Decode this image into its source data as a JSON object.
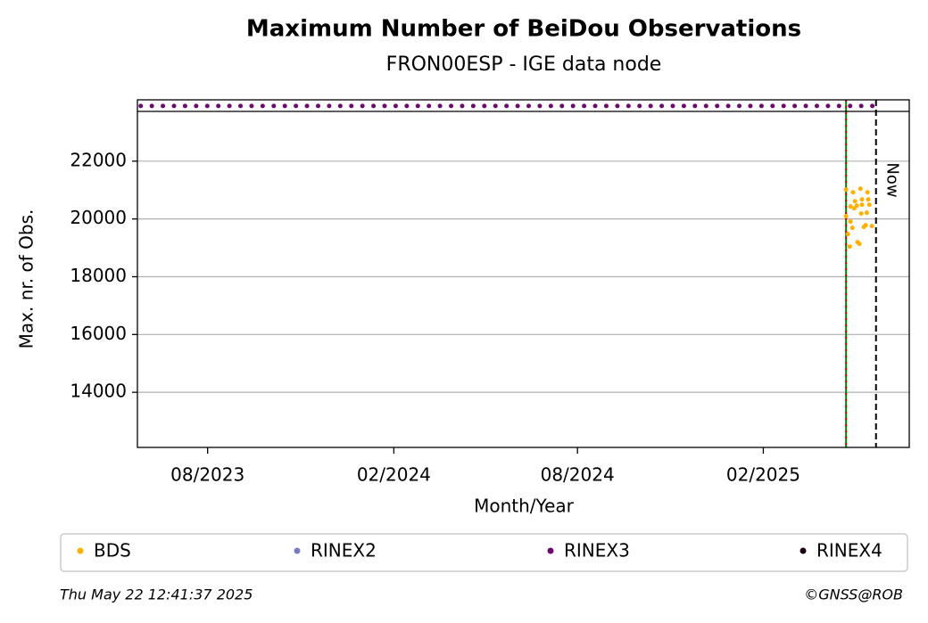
{
  "chart_data": {
    "type": "scatter",
    "title": "Maximum Number of BeiDou Observations",
    "subtitle": "FRON00ESP - IGE data node",
    "x_label": "Month/Year",
    "y_label": "Max. nr. of Obs.",
    "xlim": [
      2023.391,
      2025.48
    ],
    "ylim": [
      12092,
      24123
    ],
    "xticks": [
      {
        "value": 2023.581,
        "label": "08/2023"
      },
      {
        "value": 2024.085,
        "label": "02/2024"
      },
      {
        "value": 2024.582,
        "label": "08/2024"
      },
      {
        "value": 2025.085,
        "label": "02/2025"
      }
    ],
    "yticks": [
      14000,
      16000,
      18000,
      20000,
      22000
    ],
    "grid": true,
    "series": [
      {
        "name": "BDS",
        "color": "#ffb000",
        "x": [
          2025.309,
          2025.309,
          2025.314,
          2025.321,
          2025.319,
          2025.326,
          2025.328,
          2025.331,
          2025.333,
          2025.338,
          2025.34,
          2025.345,
          2025.348,
          2025.35,
          2025.352,
          2025.352,
          2025.362,
          2025.365,
          2025.367,
          2025.369,
          2025.372,
          2025.357,
          2025.379,
          2025.321
        ],
        "values": [
          21015,
          20092,
          19477,
          19908,
          19046,
          19692,
          20923,
          20369,
          20615,
          20462,
          19200,
          19138,
          21046,
          20185,
          20677,
          20492,
          19785,
          20215,
          20923,
          20677,
          20492,
          19723,
          19754,
          20431
        ]
      },
      {
        "name": "RINEX2",
        "color": "#7b7bbf",
        "x": [],
        "values": []
      },
      {
        "name": "RINEX3",
        "color": "#6a0a6a",
        "x": [
          2023.4,
          2023.43,
          2023.46,
          2023.49,
          2023.52,
          2023.55,
          2023.58,
          2023.61,
          2023.64,
          2023.67,
          2023.7,
          2023.73,
          2023.76,
          2023.79,
          2023.82,
          2023.85,
          2023.88,
          2023.91,
          2023.94,
          2023.97,
          2024.0,
          2024.03,
          2024.06,
          2024.09,
          2024.12,
          2024.15,
          2024.18,
          2024.21,
          2024.24,
          2024.27,
          2024.3,
          2024.33,
          2024.36,
          2024.39,
          2024.42,
          2024.45,
          2024.48,
          2024.51,
          2024.54,
          2024.57,
          2024.6,
          2024.63,
          2024.66,
          2024.69,
          2024.72,
          2024.75,
          2024.78,
          2024.81,
          2024.84,
          2024.87,
          2024.9,
          2024.93,
          2024.96,
          2024.99,
          2025.02,
          2025.05,
          2025.08,
          2025.11,
          2025.14,
          2025.17,
          2025.2,
          2025.23,
          2025.26,
          2025.29,
          2025.32,
          2025.35,
          2025.38
        ],
        "values": [
          23910,
          23910,
          23910,
          23910,
          23910,
          23910,
          23910,
          23910,
          23910,
          23910,
          23910,
          23910,
          23910,
          23910,
          23910,
          23910,
          23910,
          23910,
          23910,
          23910,
          23910,
          23910,
          23910,
          23910,
          23910,
          23910,
          23910,
          23910,
          23910,
          23910,
          23910,
          23910,
          23910,
          23910,
          23910,
          23910,
          23910,
          23910,
          23910,
          23910,
          23910,
          23910,
          23910,
          23910,
          23910,
          23910,
          23910,
          23910,
          23910,
          23910,
          23910,
          23910,
          23910,
          23910,
          23910,
          23910,
          23910,
          23910,
          23910,
          23910,
          23910,
          23910,
          23910,
          23910,
          23910,
          23910,
          23910
        ]
      },
      {
        "name": "RINEX4",
        "color": "#1a0010",
        "x": [],
        "values": []
      }
    ],
    "markers": [
      {
        "x": 2025.309,
        "color": "#008000",
        "color2": "#d00000"
      },
      {
        "x": 2025.39,
        "label": "Now",
        "color": "#000000"
      }
    ],
    "footer_left": "Thu May 22 12:41:37 2025",
    "footer_right": "©GNSS@ROB"
  }
}
